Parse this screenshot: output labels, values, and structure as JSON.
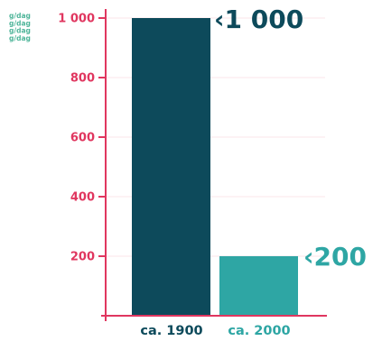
{
  "chart_data": {
    "type": "bar",
    "categories": [
      "ca. 1900",
      "ca. 2000"
    ],
    "values": [
      1000,
      200
    ],
    "data_labels": [
      "‹1 000",
      "‹200"
    ],
    "unit_label": "g/dag",
    "unit_label_repeat": 4,
    "yticks": [
      200,
      400,
      600,
      800,
      1000
    ],
    "ytick_labels": [
      "200",
      "400",
      "600",
      "800",
      "1 000"
    ],
    "ylim": [
      0,
      1000
    ],
    "grid": true,
    "legend": "none",
    "colors": {
      "bars": [
        "#0d4a5b",
        "#2ea6a4"
      ],
      "axis": "#e0365f",
      "gridline": "#fbe4ea",
      "tick_text": "#e0365f",
      "unit_text": "#4fb59a",
      "category_text": [
        "#0d4a5b",
        "#2ea6a4"
      ],
      "data_label_text": [
        "#0d4a5b",
        "#2ea6a4"
      ]
    }
  }
}
